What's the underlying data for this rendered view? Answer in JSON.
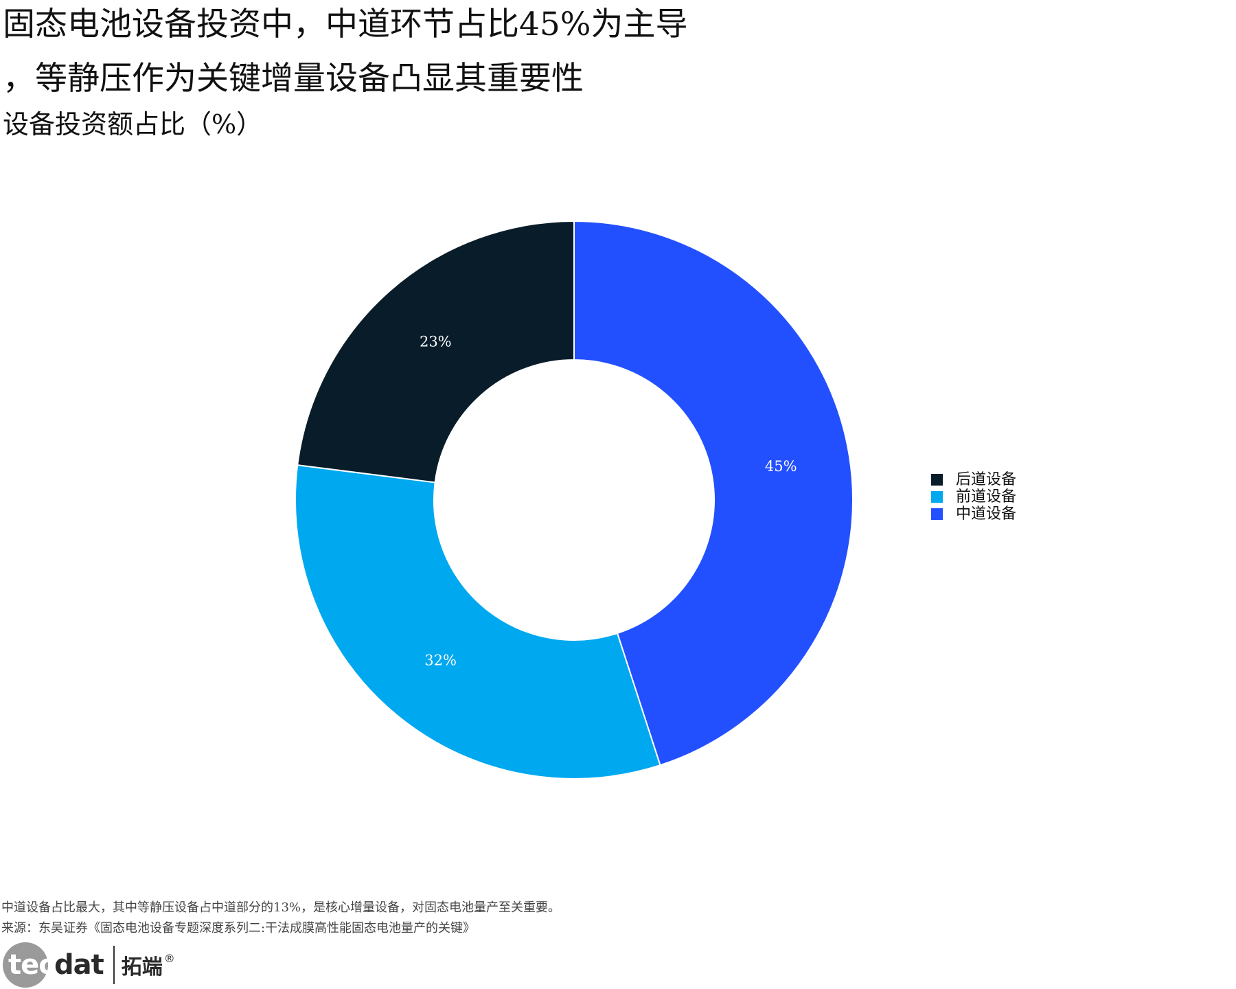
{
  "title_lines": [
    "固态电池设备投资中，中道环节占比45%为主导",
    "，等静压作为关键增量设备凸显其重要性"
  ],
  "subtitle": "设备投资额占比（%）",
  "chart_data": {
    "type": "pie",
    "donut": true,
    "start_angle_deg": 0,
    "direction": "clockwise",
    "slices": [
      {
        "label": "中道设备",
        "value": 45,
        "display": "45%",
        "color": "#2350FF"
      },
      {
        "label": "前道设备",
        "value": 32,
        "display": "32%",
        "color": "#00A8F0"
      },
      {
        "label": "后道设备",
        "value": 23,
        "display": "23%",
        "color": "#091C2A"
      }
    ],
    "legend": {
      "position": "right",
      "items": [
        {
          "label": "后道设备",
          "color": "#091C2A"
        },
        {
          "label": "前道设备",
          "color": "#00A8F0"
        },
        {
          "label": "中道设备",
          "color": "#2350FF"
        }
      ]
    }
  },
  "footnote": {
    "note": "中道设备占比最大，其中等静压设备占中道部分的13%，是核心增量设备，对固态电池量产至关重要。",
    "source": "来源：东吴证券《固态电池设备专题深度系列二:干法成膜高性能固态电池量产的关键》"
  },
  "logo": {
    "word_light": "tec",
    "word_dark": "dat",
    "cn": "拓端",
    "reg": "®"
  }
}
